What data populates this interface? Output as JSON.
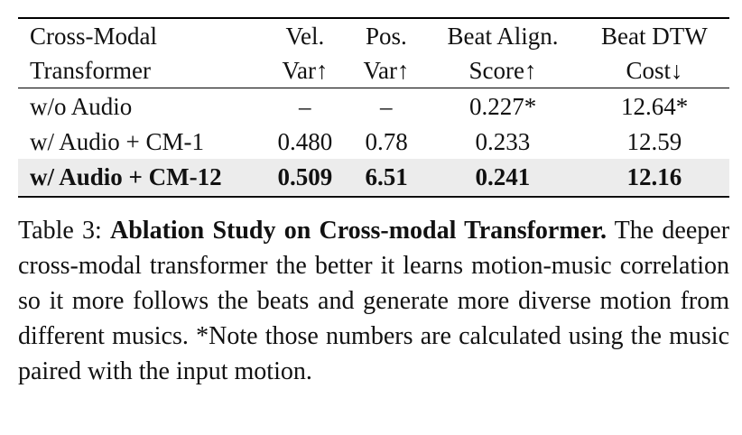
{
  "table": {
    "header": [
      [
        "Cross-Modal",
        "Transformer"
      ],
      [
        "Vel.",
        "Var↑"
      ],
      [
        "Pos.",
        "Var↑"
      ],
      [
        "Beat Align.",
        "Score↑"
      ],
      [
        "Beat DTW",
        "Cost↓"
      ]
    ],
    "rows": [
      {
        "cells": [
          "w/o Audio",
          "–",
          "–",
          "0.227*",
          "12.64*"
        ],
        "bold": false,
        "shaded": false
      },
      {
        "cells": [
          "w/ Audio + CM-1",
          "0.480",
          "0.78",
          "0.233",
          "12.59"
        ],
        "bold": false,
        "shaded": false
      },
      {
        "cells": [
          "w/ Audio + CM-12",
          "0.509",
          "6.51",
          "0.241",
          "12.16"
        ],
        "bold": true,
        "shaded": true
      }
    ]
  },
  "caption": {
    "label": "Table 3:",
    "title": "Ablation Study on Cross-modal Transformer.",
    "text": "The deeper cross-modal transformer the better it learns motion-music correlation so it more follows the beats and generate more diverse motion from different musics. *Note those numbers are calculated using the music paired with the input motion."
  }
}
